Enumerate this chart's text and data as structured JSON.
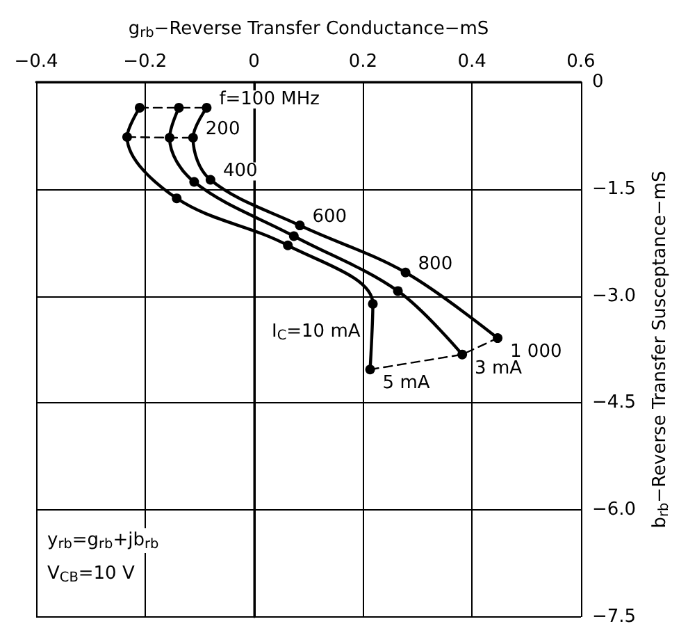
{
  "chart_data": {
    "type": "line",
    "xlabel": "g$_{rb}$−Reverse Transfer Conductance−mS",
    "ylabel": "b$_{rb}$−Reverse Transfer Susceptance−mS",
    "xlim": [
      -0.4,
      0.6
    ],
    "ylim": [
      -7.5,
      0
    ],
    "xticks": [
      {
        "value": -0.4,
        "label": "−0.4"
      },
      {
        "value": -0.2,
        "label": "−0.2"
      },
      0,
      0.2,
      0.4,
      0.6
    ],
    "yticks": [
      0,
      {
        "value": -1.5,
        "label": "−1.5"
      },
      {
        "value": -3,
        "label": "−3.0"
      },
      {
        "value": -4.5,
        "label": "−4.5"
      },
      {
        "value": -6,
        "label": "−6.0"
      },
      {
        "value": -7.5,
        "label": "−7.5"
      }
    ],
    "grid": true,
    "marker": "circle",
    "line_style": "solid",
    "tick_labels": "xy",
    "series": [
      {
        "color": "#000000",
        "x": [
          -0.21,
          -0.233,
          -0.142,
          0.062,
          0.218,
          0.213
        ],
        "values": [
          -0.36,
          -0.77,
          -1.63,
          -2.29,
          -3.11,
          -4.03
        ]
      },
      {
        "color": "#000000",
        "x": [
          -0.138,
          -0.155,
          -0.11,
          0.073,
          0.264,
          0.382
        ],
        "values": [
          -0.36,
          -0.78,
          -1.4,
          -2.16,
          -2.93,
          -3.82
        ]
      },
      {
        "color": "#000000",
        "x": [
          -0.087,
          -0.112,
          -0.08,
          0.084,
          0.278,
          0.447
        ],
        "values": [
          -0.36,
          -0.78,
          -1.37,
          -2.01,
          -2.67,
          -3.59
        ]
      },
      {
        "color": "#000000",
        "line_style": "dashed",
        "marker": "none",
        "x": [
          -0.21,
          -0.138,
          -0.087
        ],
        "values": [
          -0.36,
          -0.36,
          -0.36
        ]
      },
      {
        "color": "#000000",
        "line_style": "dashed",
        "marker": "none",
        "x": [
          -0.233,
          -0.155,
          -0.112
        ],
        "values": [
          -0.77,
          -0.78,
          -0.78
        ]
      },
      {
        "color": "#000000",
        "line_style": "dashed",
        "marker": "none",
        "x": [
          0.213,
          0.382,
          0.447
        ],
        "values": [
          -4.03,
          -3.82,
          -3.59
        ]
      }
    ],
    "annotations": [
      {
        "text": "f=100 MHz",
        "x": -0.087,
        "y": -0.36
      },
      {
        "text": "200",
        "x": -0.112,
        "y": -0.78
      },
      {
        "text": "400",
        "x": -0.08,
        "y": -1.37
      },
      {
        "text": "600",
        "x": 0.084,
        "y": -2.01
      },
      {
        "text": "800",
        "x": 0.278,
        "y": -2.67
      },
      {
        "text": "1 000",
        "x": 0.447,
        "y": -3.59
      },
      {
        "text": "I$_{C}$=10 mA",
        "x": 0.218,
        "y": -3.11
      },
      {
        "text": "5 mA",
        "x": 0.213,
        "y": -4.03
      },
      {
        "text": "3 mA",
        "x": 0.382,
        "y": -3.82
      },
      "y$_{rb}$=g$_{rb}$+jb$_{rb}$",
      "V$_{CB}$=10 V"
    ]
  }
}
